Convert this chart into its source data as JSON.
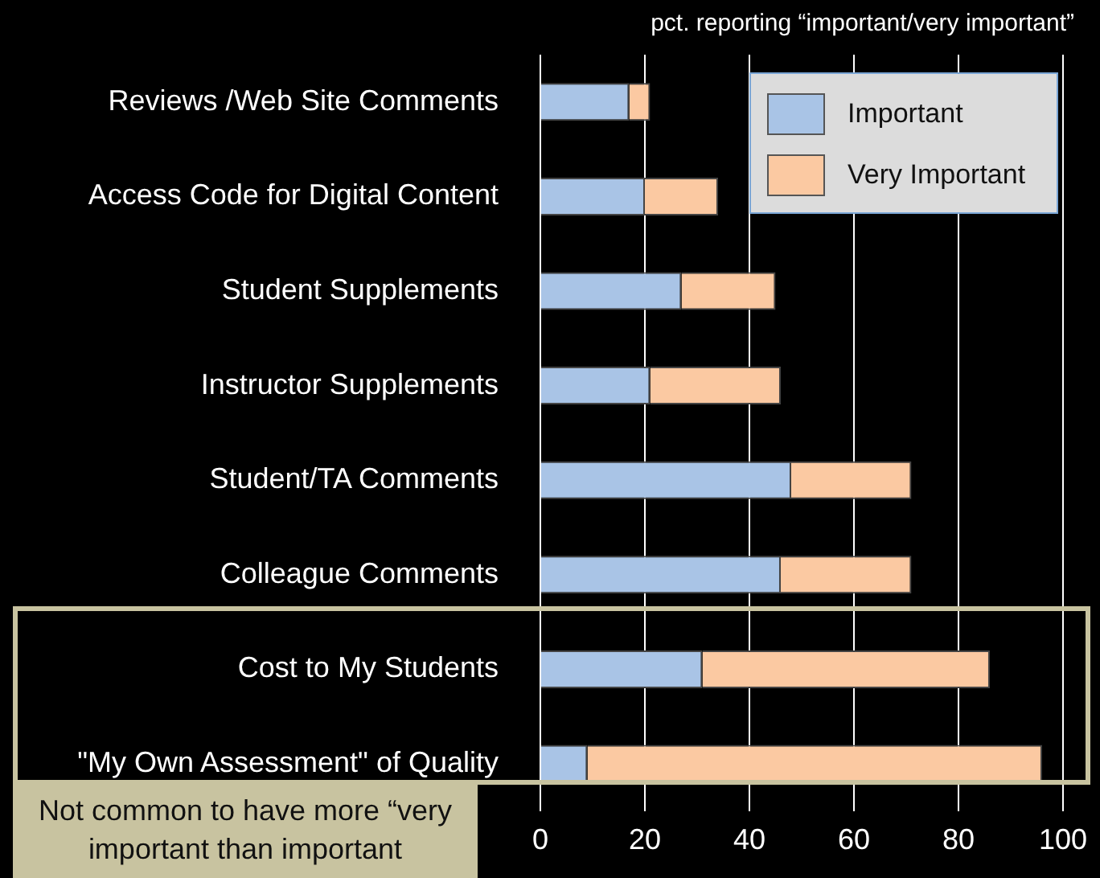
{
  "chart_data": {
    "type": "bar",
    "orientation": "horizontal",
    "stacked": true,
    "title": "pct. reporting “important/very important”",
    "categories": [
      "Reviews /Web Site Comments",
      "Access Code for Digital Content",
      "Student Supplements",
      "Instructor Supplements",
      "Student/TA Comments",
      "Colleague Comments",
      "Cost to My Students",
      "\"My Own Assessment\" of Quality"
    ],
    "series": [
      {
        "name": "Important",
        "color": "#a9c4e6",
        "values": [
          17,
          20,
          27,
          21,
          48,
          46,
          31,
          9
        ]
      },
      {
        "name": "Very Important",
        "color": "#fbc9a2",
        "values": [
          4,
          14,
          18,
          25,
          23,
          25,
          55,
          87
        ]
      }
    ],
    "xlim": [
      0,
      100
    ],
    "xticks": [
      0,
      20,
      40,
      60,
      80,
      100
    ],
    "grid": "x",
    "legend": "top right",
    "annotations": [
      "Not common to have more “very important than important"
    ]
  }
}
